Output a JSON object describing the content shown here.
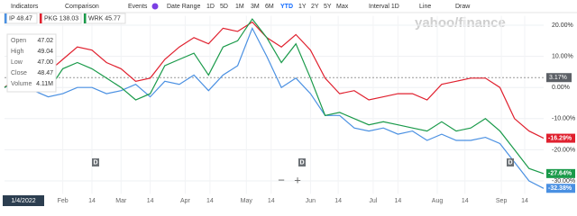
{
  "toolbar": {
    "items": [
      "Indicators",
      "Comparison",
      "Events",
      "Date Range"
    ],
    "ranges": [
      "1D",
      "5D",
      "1M",
      "3M",
      "6M",
      "YTD",
      "1Y",
      "2Y",
      "5Y",
      "Max"
    ],
    "active_range": 5,
    "interval": "Interval 1D",
    "line": "Line",
    "draw": "Draw",
    "logo": "yahoo/finance"
  },
  "tooltip": {
    "rows": [
      [
        "Open",
        "47.02"
      ],
      [
        "High",
        "49.04"
      ],
      [
        "Low",
        "47.00"
      ],
      [
        "Close",
        "48.47"
      ],
      [
        "Volume",
        "4.11M"
      ]
    ]
  },
  "zoom": [
    "−",
    "+"
  ],
  "date_label": "1/4/2022",
  "dividend_label": "D",
  "chart_data": {
    "type": "line",
    "legend": [
      "IP 48.47",
      "PKG 138.03",
      "WRK 45.77"
    ],
    "series": [
      {
        "name": "IP",
        "color": "#4a90e2",
        "values": [
          0,
          2,
          -1,
          -3,
          -2,
          0,
          0,
          -2,
          -1,
          1,
          -3,
          2,
          1,
          4,
          -1,
          4,
          7,
          19,
          10,
          0,
          3,
          -2,
          -9,
          -9,
          -13,
          -14,
          -13,
          -15,
          -14,
          -17,
          -15,
          -17,
          -17,
          -16,
          -18,
          -24,
          -30,
          -32.38
        ]
      },
      {
        "name": "PKG",
        "color": "#e0202e",
        "values": [
          0,
          4,
          8,
          5,
          9,
          13,
          12,
          8,
          6,
          2,
          3,
          9,
          13,
          16,
          14,
          19,
          18,
          21,
          16,
          13,
          17,
          12,
          3,
          -2,
          -1,
          -4,
          -3,
          -2,
          -2,
          -4,
          1,
          2,
          3,
          3,
          0,
          -10,
          -14,
          -16.29
        ]
      },
      {
        "name": "WRK",
        "color": "#1a9a4a",
        "values": [
          0,
          3,
          0,
          -1,
          6,
          8,
          6,
          3,
          0,
          -4,
          -2,
          7,
          9,
          11,
          4,
          13,
          15,
          22,
          16,
          8,
          14,
          3,
          -9,
          -8,
          -10,
          -12,
          -11,
          -12,
          -13,
          -14,
          -11,
          -14,
          -13,
          -10,
          -14,
          -20,
          -26,
          -27.64
        ]
      }
    ],
    "end_labels": [
      {
        "value": -32.38,
        "label": "-32.38%"
      },
      {
        "value": -16.29,
        "label": "-16.29%"
      },
      {
        "value": -27.64,
        "label": "-27.64%"
      }
    ],
    "crosshair": {
      "value": 3.17,
      "label": "3.17%"
    },
    "xlim": [
      0,
      37
    ],
    "xticks": [
      {
        "value": 4,
        "label": "Feb"
      },
      {
        "value": 6,
        "label": "14"
      },
      {
        "value": 8,
        "label": "Mar"
      },
      {
        "value": 10,
        "label": "14"
      },
      {
        "value": 12.4,
        "label": "Apr"
      },
      {
        "value": 14.1,
        "label": "14"
      },
      {
        "value": 16.6,
        "label": "May"
      },
      {
        "value": 18.3,
        "label": "14"
      },
      {
        "value": 21,
        "label": "Jun"
      },
      {
        "value": 22.9,
        "label": "14"
      },
      {
        "value": 25.3,
        "label": "Jul"
      },
      {
        "value": 27,
        "label": "14"
      },
      {
        "value": 29.7,
        "label": "Aug"
      },
      {
        "value": 31.6,
        "label": "14"
      },
      {
        "value": 34.1,
        "label": "Sep"
      },
      {
        "value": 35.7,
        "label": "14"
      }
    ],
    "ylim": [
      -33,
      23
    ],
    "yticks": [
      {
        "value": 20,
        "label": "20.00%"
      },
      {
        "value": 10,
        "label": "10.00%"
      },
      {
        "value": 0,
        "label": "0.00%"
      },
      {
        "value": -10,
        "label": "-10.00%"
      },
      {
        "value": -20,
        "label": "-20.00%"
      },
      {
        "value": -30,
        "label": "-30.00%"
      }
    ],
    "grid": true
  }
}
